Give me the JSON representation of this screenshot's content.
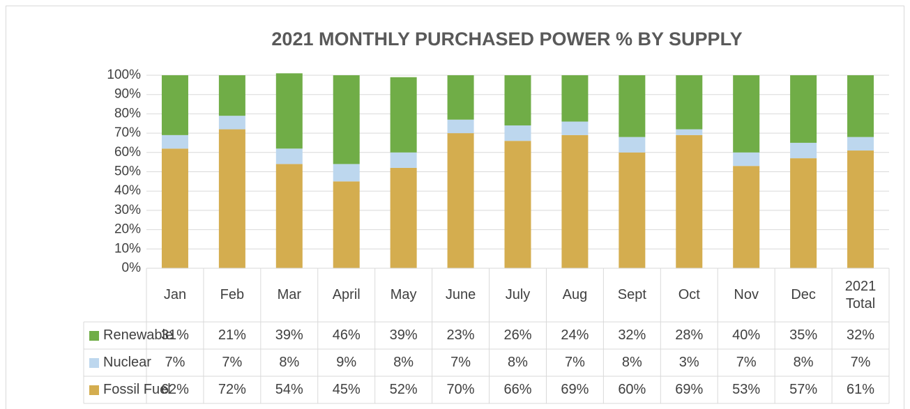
{
  "chart_data": {
    "type": "stacked_bar",
    "title": "2021 MONTHLY PURCHASED POWER % BY SUPPLY",
    "categories": [
      "Jan",
      "Feb",
      "Mar",
      "April",
      "May",
      "June",
      "July",
      "Aug",
      "Sept",
      "Oct",
      "Nov",
      "Dec",
      "2021 Total"
    ],
    "series": [
      {
        "name": "Renewable",
        "color": "#70ad47",
        "values": [
          31,
          21,
          39,
          46,
          39,
          23,
          26,
          24,
          32,
          28,
          40,
          35,
          32
        ],
        "value_labels": [
          "31%",
          "21%",
          "39%",
          "46%",
          "39%",
          "23%",
          "26%",
          "24%",
          "32%",
          "28%",
          "40%",
          "35%",
          "32%"
        ]
      },
      {
        "name": "Nuclear",
        "color": "#bdd7ee",
        "values": [
          7,
          7,
          8,
          9,
          8,
          7,
          8,
          7,
          8,
          3,
          7,
          8,
          7
        ],
        "value_labels": [
          "7%",
          "7%",
          "8%",
          "9%",
          "8%",
          "7%",
          "8%",
          "7%",
          "8%",
          "3%",
          "7%",
          "8%",
          "7%"
        ]
      },
      {
        "name": "Fossil Fuel",
        "color": "#d4ad4f",
        "values": [
          62,
          72,
          54,
          45,
          52,
          70,
          66,
          69,
          60,
          69,
          53,
          57,
          61
        ],
        "value_labels": [
          "62%",
          "72%",
          "54%",
          "45%",
          "52%",
          "70%",
          "66%",
          "69%",
          "60%",
          "69%",
          "53%",
          "57%",
          "61%"
        ]
      }
    ],
    "ylim": [
      0,
      100
    ],
    "yticks": [
      {
        "value": 0,
        "label": "0%"
      },
      {
        "value": 10,
        "label": "10%"
      },
      {
        "value": 20,
        "label": "20%"
      },
      {
        "value": 30,
        "label": "30%"
      },
      {
        "value": 40,
        "label": "40%"
      },
      {
        "value": 50,
        "label": "50%"
      },
      {
        "value": 60,
        "label": "60%"
      },
      {
        "value": 70,
        "label": "70%"
      },
      {
        "value": 80,
        "label": "80%"
      },
      {
        "value": 90,
        "label": "90%"
      },
      {
        "value": 100,
        "label": "100%"
      }
    ],
    "grid": true
  }
}
